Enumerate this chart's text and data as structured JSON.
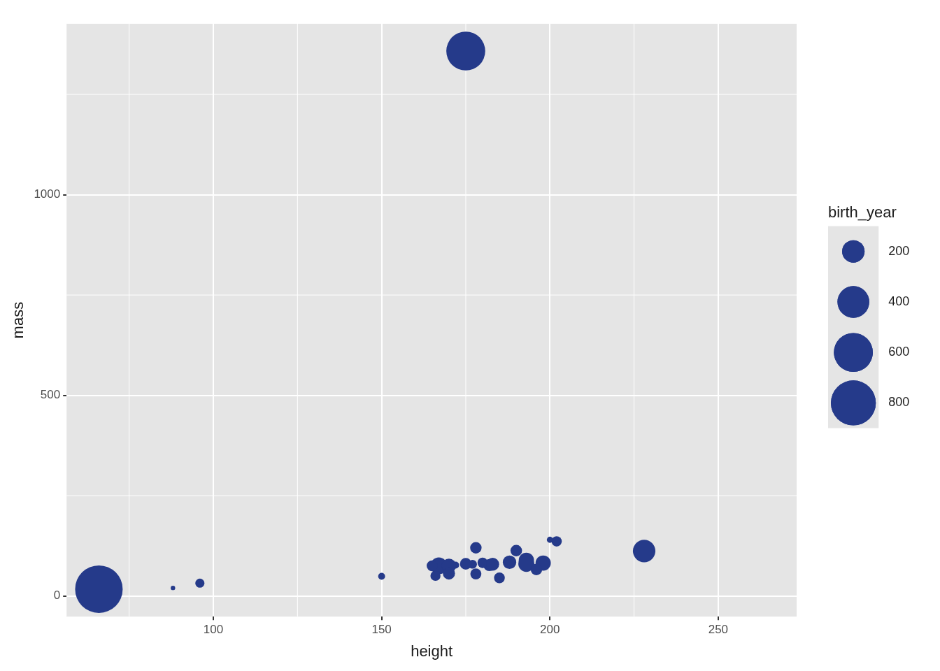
{
  "chart_data": {
    "type": "bubble",
    "xlabel": "height",
    "ylabel": "mass",
    "legend_title": "birth_year",
    "grid": true,
    "marker": "circle",
    "xlim": [
      56.4,
      273.3
    ],
    "xticks": [
      100,
      150,
      200,
      250
    ],
    "ylim": [
      -51.5,
      1426
    ],
    "yticks": [
      0,
      500,
      1000
    ],
    "size_legend": [
      200,
      400,
      600,
      800
    ],
    "series": [
      {
        "color": "#253a8a",
        "x": [
          172,
          167,
          96,
          202,
          150,
          178,
          165,
          182,
          228,
          180,
          175,
          66,
          170,
          177,
          180,
          88,
          193,
          185,
          188,
          198,
          193,
          183,
          170,
          166,
          178,
          200,
          190,
          196,
          175
        ],
        "values": [
          77,
          75,
          32,
          136,
          49,
          120,
          75,
          77,
          112,
          80,
          1358,
          17,
          75,
          79,
          83,
          20,
          89,
          45,
          84,
          82,
          80,
          79,
          56,
          50,
          55,
          140,
          113,
          66,
          80
        ],
        "sizes": [
          19,
          112,
          33,
          41.9,
          19,
          52,
          47,
          57,
          200,
          29,
          600,
          896,
          82,
          31,
          41,
          8,
          92,
          46,
          72,
          92,
          102,
          66,
          58,
          40,
          48,
          15,
          53,
          52,
          54
        ]
      }
    ]
  }
}
